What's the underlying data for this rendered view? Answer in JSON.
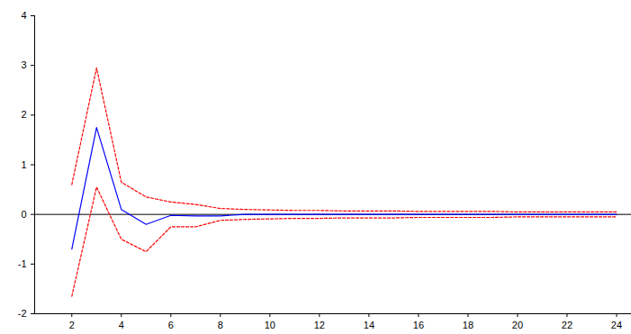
{
  "chart_data": {
    "type": "line",
    "x": [
      2,
      3,
      4,
      5,
      6,
      7,
      8,
      9,
      10,
      11,
      12,
      13,
      14,
      15,
      16,
      17,
      18,
      19,
      20,
      21,
      22,
      23,
      24
    ],
    "series": [
      {
        "color": "#0000ff",
        "line_style": "solid",
        "values": [
          -0.7,
          1.75,
          0.1,
          -0.2,
          -0.02,
          -0.03,
          -0.03,
          0,
          0,
          0,
          0,
          0,
          0,
          0,
          0,
          0,
          0,
          0,
          0,
          0,
          0,
          0,
          0
        ]
      },
      {
        "color": "#ff0000",
        "line_style": "dashed",
        "values": [
          0.6,
          2.95,
          0.65,
          0.35,
          0.25,
          0.2,
          0.12,
          0.1,
          0.09,
          0.08,
          0.08,
          0.07,
          0.07,
          0.07,
          0.06,
          0.06,
          0.06,
          0.06,
          0.05,
          0.05,
          0.05,
          0.05,
          0.05
        ]
      },
      {
        "color": "#ff0000",
        "line_style": "dashed",
        "values": [
          -1.65,
          0.55,
          -0.5,
          -0.75,
          -0.25,
          -0.25,
          -0.12,
          -0.1,
          -0.09,
          -0.08,
          -0.08,
          -0.07,
          -0.07,
          -0.07,
          -0.06,
          -0.06,
          -0.06,
          -0.06,
          -0.05,
          -0.05,
          -0.05,
          -0.05,
          -0.05
        ]
      }
    ],
    "xlim": [
      0.5,
      24.6
    ],
    "xticks": [
      2,
      4,
      6,
      8,
      10,
      12,
      14,
      16,
      18,
      20,
      22,
      24
    ],
    "ylim": [
      -2,
      4
    ],
    "yticks": [
      -2,
      -1,
      0,
      1,
      2,
      3,
      4
    ],
    "grid": false
  }
}
